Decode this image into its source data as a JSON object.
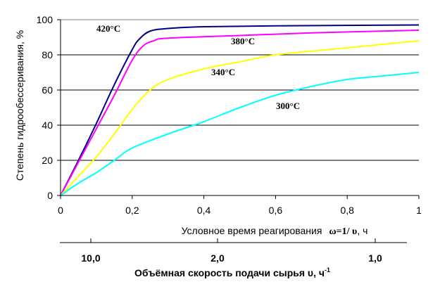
{
  "chart_data": {
    "type": "line",
    "ylabel": "Степень гидрообессеривания, %",
    "xlabel_prefix": "Условное время реагирования",
    "xlabel_formula": "ω=1/ υ",
    "xlabel_unit": ", ч",
    "xlim": [
      0,
      1
    ],
    "ylim": [
      0,
      100
    ],
    "x_ticks": [
      "0",
      "0,2",
      "0,4",
      "0,6",
      "0,8",
      "1"
    ],
    "y_ticks": [
      "0",
      "20",
      "40",
      "60",
      "80",
      "100"
    ],
    "grid": "horizontal",
    "series": [
      {
        "name": "420°C",
        "color": "#000080",
        "x": [
          0,
          0.05,
          0.1,
          0.15,
          0.2,
          0.22,
          0.25,
          0.3,
          0.4,
          0.6,
          1.0
        ],
        "y": [
          0,
          20,
          41,
          63,
          83,
          89,
          93.5,
          95,
          96,
          96.5,
          97
        ]
      },
      {
        "name": "380°C",
        "color": "#ff00ff",
        "x": [
          0,
          0.05,
          0.1,
          0.15,
          0.2,
          0.23,
          0.26,
          0.3,
          0.5,
          0.7,
          1.0
        ],
        "y": [
          0,
          19,
          38,
          57,
          77,
          85,
          88,
          89.5,
          91,
          92.5,
          94
        ]
      },
      {
        "name": "340°C",
        "color": "#ffff00",
        "x": [
          0,
          0.05,
          0.1,
          0.15,
          0.2,
          0.25,
          0.3,
          0.4,
          0.5,
          0.6,
          0.8,
          1.0
        ],
        "y": [
          0,
          11,
          22,
          35,
          49,
          60,
          66,
          72,
          76,
          80,
          84,
          88
        ]
      },
      {
        "name": "300°C",
        "color": "#00ffff",
        "x": [
          0,
          0.05,
          0.1,
          0.15,
          0.2,
          0.3,
          0.4,
          0.5,
          0.6,
          0.7,
          0.8,
          0.9,
          1.0
        ],
        "y": [
          0,
          7,
          13,
          20,
          27,
          35,
          42,
          50,
          57,
          62,
          66,
          68,
          70
        ]
      }
    ],
    "secondary_axis": {
      "label": "Объёмная скорость подачи сырья υ, ч",
      "label_sup": "-1",
      "ticks": [
        "10,0",
        "2,0",
        "1,0"
      ]
    }
  }
}
